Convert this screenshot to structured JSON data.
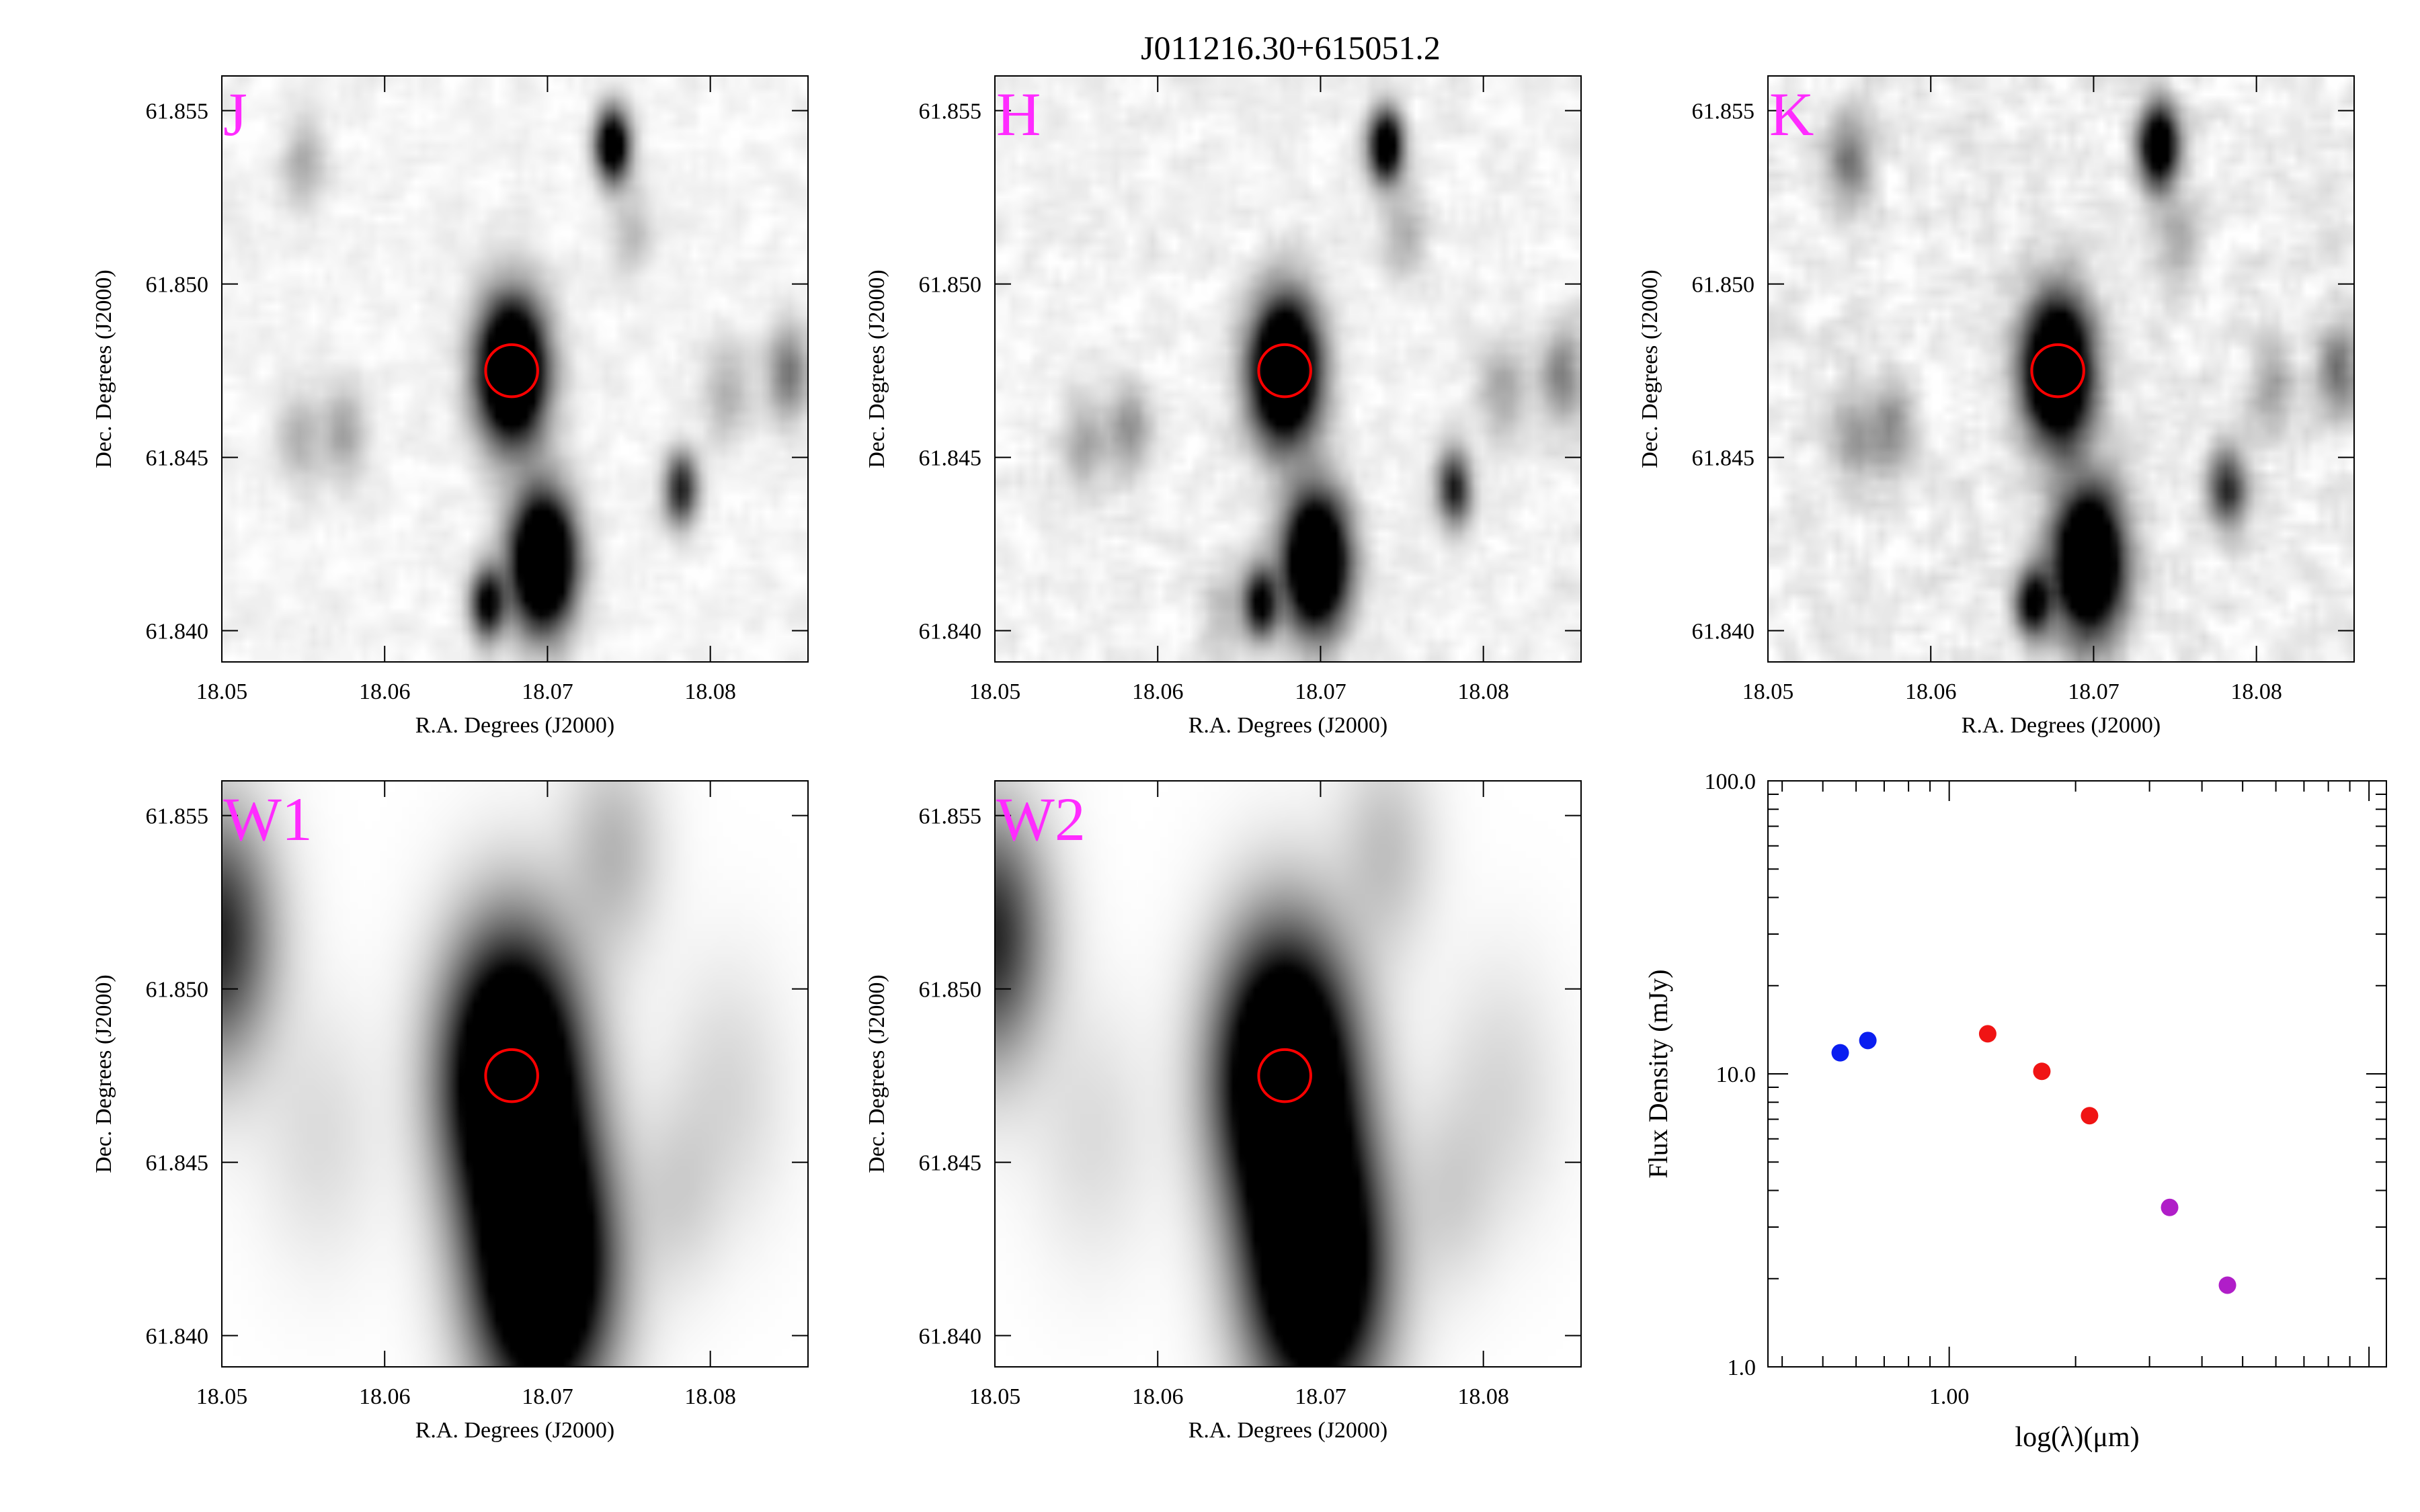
{
  "figure": {
    "title": "J011216.30+615051.2"
  },
  "colors": {
    "band_label": "#ff2bff",
    "aperture": "#ff0000",
    "sed_blue": "#0a1ef0",
    "sed_red": "#f01414",
    "sed_purple": "#b01ec8"
  },
  "chart_data": [
    {
      "type": "image",
      "panel": "J",
      "band_label": "J",
      "xlabel": "R.A. Degrees (J2000)",
      "ylabel": "Dec. Degrees (J2000)",
      "xlim": [
        18.05,
        18.086
      ],
      "ylim": [
        61.8391,
        61.856
      ],
      "xticks": [
        "18.05",
        "18.06",
        "18.07",
        "18.08"
      ],
      "yticks": [
        "61.840",
        "61.845",
        "61.850",
        "61.855"
      ],
      "aperture": {
        "ra": 18.0678,
        "dec": 61.8475,
        "radius_deg": 0.0016
      },
      "sources": [
        {
          "ra": 18.0678,
          "dec": 61.8475,
          "flux": 1.0,
          "sigma": 0.0014
        },
        {
          "ra": 18.0697,
          "dec": 61.842,
          "flux": 1.0,
          "sigma": 0.0013
        },
        {
          "ra": 18.074,
          "dec": 61.854,
          "flux": 0.7,
          "sigma": 0.0007
        },
        {
          "ra": 18.0782,
          "dec": 61.8441,
          "flux": 0.45,
          "sigma": 0.0007
        },
        {
          "ra": 18.0663,
          "dec": 61.8408,
          "flux": 0.55,
          "sigma": 0.0007
        },
        {
          "ra": 18.0848,
          "dec": 61.8474,
          "flux": 0.25,
          "sigma": 0.0009
        },
        {
          "ra": 18.0575,
          "dec": 61.8458,
          "flux": 0.15,
          "sigma": 0.0009
        },
        {
          "ra": 18.0548,
          "dec": 61.8455,
          "flux": 0.12,
          "sigma": 0.0009
        },
        {
          "ra": 18.055,
          "dec": 61.8535,
          "flux": 0.12,
          "sigma": 0.0009
        },
        {
          "ra": 18.081,
          "dec": 61.8469,
          "flux": 0.12,
          "sigma": 0.001
        },
        {
          "ra": 18.0752,
          "dec": 61.8515,
          "flux": 0.1,
          "sigma": 0.0009
        }
      ],
      "noise": 0.06
    },
    {
      "type": "image",
      "panel": "H",
      "band_label": "H",
      "xlabel": "R.A. Degrees (J2000)",
      "ylabel": "Dec. Degrees (J2000)",
      "xlim": [
        18.05,
        18.086
      ],
      "ylim": [
        61.8391,
        61.856
      ],
      "xticks": [
        "18.05",
        "18.06",
        "18.07",
        "18.08"
      ],
      "yticks": [
        "61.840",
        "61.845",
        "61.850",
        "61.855"
      ],
      "aperture": {
        "ra": 18.0678,
        "dec": 61.8475,
        "radius_deg": 0.0016
      },
      "sources": [
        {
          "ra": 18.0678,
          "dec": 61.8475,
          "flux": 1.0,
          "sigma": 0.0014
        },
        {
          "ra": 18.0697,
          "dec": 61.842,
          "flux": 1.0,
          "sigma": 0.0013
        },
        {
          "ra": 18.074,
          "dec": 61.854,
          "flux": 0.7,
          "sigma": 0.0007
        },
        {
          "ra": 18.0782,
          "dec": 61.8441,
          "flux": 0.45,
          "sigma": 0.0007
        },
        {
          "ra": 18.0663,
          "dec": 61.8408,
          "flux": 0.55,
          "sigma": 0.0007
        },
        {
          "ra": 18.0848,
          "dec": 61.8474,
          "flux": 0.22,
          "sigma": 0.0009
        },
        {
          "ra": 18.0812,
          "dec": 61.8469,
          "flux": 0.15,
          "sigma": 0.001
        },
        {
          "ra": 18.0582,
          "dec": 61.8458,
          "flux": 0.18,
          "sigma": 0.0009
        },
        {
          "ra": 18.0555,
          "dec": 61.8453,
          "flux": 0.14,
          "sigma": 0.0009
        },
        {
          "ra": 18.064,
          "dec": 61.8405,
          "flux": 0.1,
          "sigma": 0.0009
        },
        {
          "ra": 18.0752,
          "dec": 61.8515,
          "flux": 0.12,
          "sigma": 0.0009
        }
      ],
      "noise": 0.08
    },
    {
      "type": "image",
      "panel": "K",
      "band_label": "K",
      "xlabel": "R.A. Degrees (J2000)",
      "ylabel": "Dec. Degrees (J2000)",
      "xlim": [
        18.05,
        18.086
      ],
      "ylim": [
        61.8391,
        61.856
      ],
      "xticks": [
        "18.05",
        "18.06",
        "18.07",
        "18.08"
      ],
      "yticks": [
        "61.840",
        "61.845",
        "61.850",
        "61.855"
      ],
      "aperture": {
        "ra": 18.0678,
        "dec": 61.8475,
        "radius_deg": 0.0016
      },
      "sources": [
        {
          "ra": 18.0678,
          "dec": 61.8475,
          "flux": 1.0,
          "sigma": 0.0014
        },
        {
          "ra": 18.0697,
          "dec": 61.842,
          "flux": 1.0,
          "sigma": 0.0014
        },
        {
          "ra": 18.074,
          "dec": 61.854,
          "flux": 0.75,
          "sigma": 0.0008
        },
        {
          "ra": 18.0782,
          "dec": 61.8441,
          "flux": 0.4,
          "sigma": 0.0008
        },
        {
          "ra": 18.0663,
          "dec": 61.8408,
          "flux": 0.55,
          "sigma": 0.0007
        },
        {
          "ra": 18.085,
          "dec": 61.8475,
          "flux": 0.25,
          "sigma": 0.0009
        },
        {
          "ra": 18.055,
          "dec": 61.8535,
          "flux": 0.22,
          "sigma": 0.0009
        },
        {
          "ra": 18.0575,
          "dec": 61.8458,
          "flux": 0.2,
          "sigma": 0.0009
        },
        {
          "ra": 18.0552,
          "dec": 61.8457,
          "flux": 0.16,
          "sigma": 0.0009
        },
        {
          "ra": 18.081,
          "dec": 61.847,
          "flux": 0.14,
          "sigma": 0.001
        },
        {
          "ra": 18.0752,
          "dec": 61.8513,
          "flux": 0.12,
          "sigma": 0.0009
        }
      ],
      "noise": 0.11
    },
    {
      "type": "image",
      "panel": "W1",
      "band_label": "W1",
      "xlabel": "R.A. Degrees (J2000)",
      "ylabel": "Dec. Degrees (J2000)",
      "xlim": [
        18.05,
        18.086
      ],
      "ylim": [
        61.8391,
        61.856
      ],
      "xticks": [
        "18.05",
        "18.06",
        "18.07",
        "18.08"
      ],
      "yticks": [
        "61.840",
        "61.845",
        "61.850",
        "61.855"
      ],
      "aperture": {
        "ra": 18.0678,
        "dec": 61.8475,
        "radius_deg": 0.0016
      },
      "sources": [
        {
          "ra": 18.0678,
          "dec": 61.8475,
          "flux": 1.0,
          "sigma": 0.0027
        },
        {
          "ra": 18.0697,
          "dec": 61.842,
          "flux": 1.0,
          "sigma": 0.0027
        },
        {
          "ra": 18.0495,
          "dec": 61.8515,
          "flux": 0.45,
          "sigma": 0.0024
        },
        {
          "ra": 18.074,
          "dec": 61.854,
          "flux": 0.12,
          "sigma": 0.002
        },
        {
          "ra": 18.081,
          "dec": 61.847,
          "flux": 0.06,
          "sigma": 0.0025
        },
        {
          "ra": 18.078,
          "dec": 61.844,
          "flux": 0.06,
          "sigma": 0.0018
        },
        {
          "ra": 18.056,
          "dec": 61.8458,
          "flux": 0.05,
          "sigma": 0.0025
        }
      ],
      "noise": 0.0,
      "pixel_ra": 0.00075
    },
    {
      "type": "image",
      "panel": "W2",
      "band_label": "W2",
      "xlabel": "R.A. Degrees (J2000)",
      "ylabel": "Dec. Degrees (J2000)",
      "xlim": [
        18.05,
        18.086
      ],
      "ylim": [
        61.8391,
        61.856
      ],
      "xticks": [
        "18.05",
        "18.06",
        "18.07",
        "18.08"
      ],
      "yticks": [
        "61.840",
        "61.845",
        "61.850",
        "61.855"
      ],
      "aperture": {
        "ra": 18.0678,
        "dec": 61.8475,
        "radius_deg": 0.0016
      },
      "sources": [
        {
          "ra": 18.0678,
          "dec": 61.8475,
          "flux": 1.0,
          "sigma": 0.0027
        },
        {
          "ra": 18.0697,
          "dec": 61.842,
          "flux": 0.95,
          "sigma": 0.0027
        },
        {
          "ra": 18.0495,
          "dec": 61.8515,
          "flux": 0.45,
          "sigma": 0.0024
        },
        {
          "ra": 18.074,
          "dec": 61.854,
          "flux": 0.1,
          "sigma": 0.002
        },
        {
          "ra": 18.081,
          "dec": 61.847,
          "flux": 0.06,
          "sigma": 0.0025
        },
        {
          "ra": 18.078,
          "dec": 61.844,
          "flux": 0.06,
          "sigma": 0.0018
        },
        {
          "ra": 18.056,
          "dec": 61.8458,
          "flux": 0.05,
          "sigma": 0.0025
        }
      ],
      "noise": 0.0,
      "pixel_ra": 0.00075
    },
    {
      "type": "scatter",
      "panel": "SED",
      "xlabel": "log(λ)(μm)",
      "ylabel": "Flux Density (mJy)",
      "x_scale": "log",
      "y_scale": "log",
      "xlim": [
        0.37,
        11.0
      ],
      "ylim": [
        1.0,
        100.0
      ],
      "xticks": [
        {
          "value": 1.0,
          "label": "1.00"
        }
      ],
      "yticks": [
        {
          "value": 1.0,
          "label": "1.0"
        },
        {
          "value": 10.0,
          "label": "10.0"
        },
        {
          "value": 100.0,
          "label": "100.0"
        }
      ],
      "series": [
        {
          "color": "#0a1ef0",
          "x": [
            0.55,
            0.64
          ],
          "y": [
            11.8,
            13.0
          ]
        },
        {
          "color": "#f01414",
          "x": [
            1.235,
            1.662,
            2.159
          ],
          "y": [
            13.7,
            10.2,
            7.2
          ]
        },
        {
          "color": "#b01ec8",
          "x": [
            3.35,
            4.6
          ],
          "y": [
            3.5,
            1.9
          ]
        }
      ]
    }
  ]
}
